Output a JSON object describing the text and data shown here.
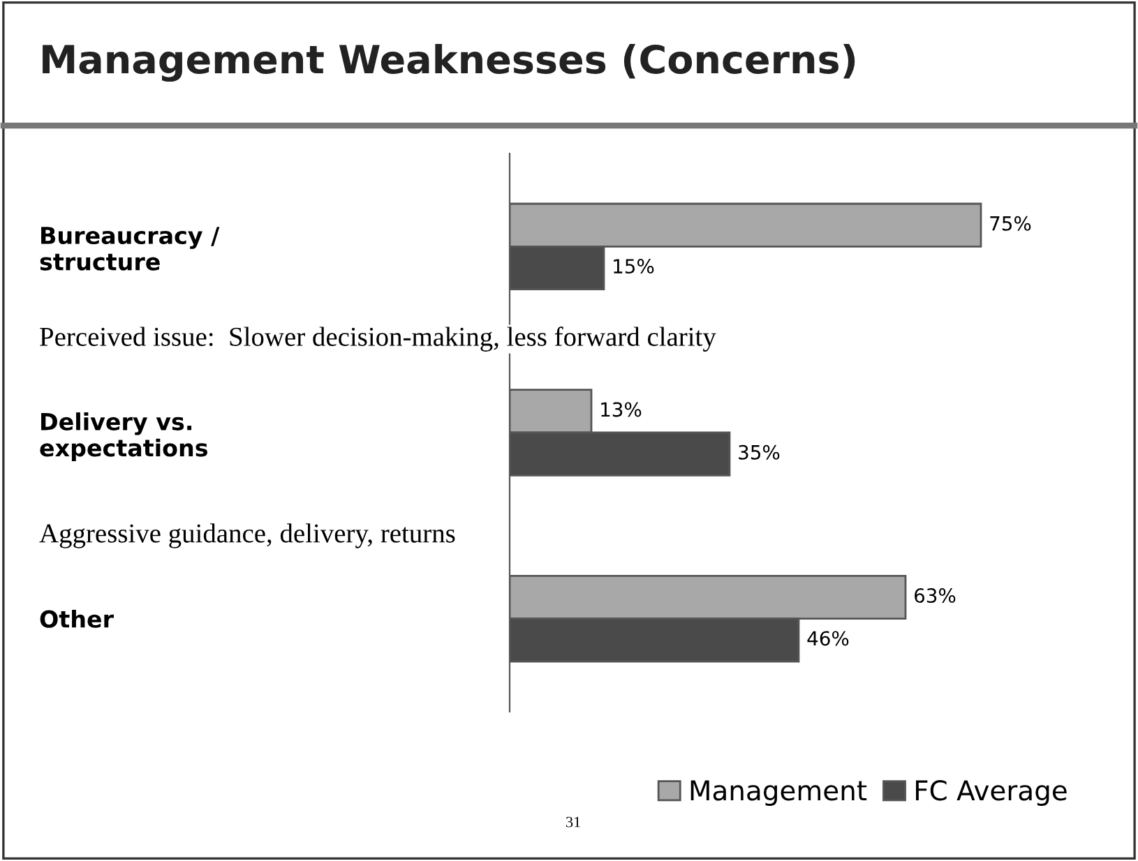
{
  "chart_data": {
    "type": "bar",
    "orientation": "horizontal",
    "title": "Management Weaknesses (Concerns)",
    "categories": [
      "Bureaucracy /\nstructure",
      "Delivery vs.\nexpectations",
      "Other"
    ],
    "series": [
      {
        "name": "Management",
        "color": "#a8a8a8",
        "values": [
          75,
          13,
          63
        ],
        "value_labels": [
          "75%",
          "13%",
          "63%"
        ]
      },
      {
        "name": "FC Average",
        "color": "#4a4a4a",
        "values": [
          15,
          35,
          46
        ],
        "value_labels": [
          "15%",
          "35%",
          "46%"
        ]
      }
    ],
    "annotations": [
      "Perceived issue:  Slower decision-making, less forward clarity",
      "Aggressive guidance, delivery, returns",
      "31"
    ],
    "legend": "bottom",
    "tick_labels": "y",
    "grid": false
  }
}
